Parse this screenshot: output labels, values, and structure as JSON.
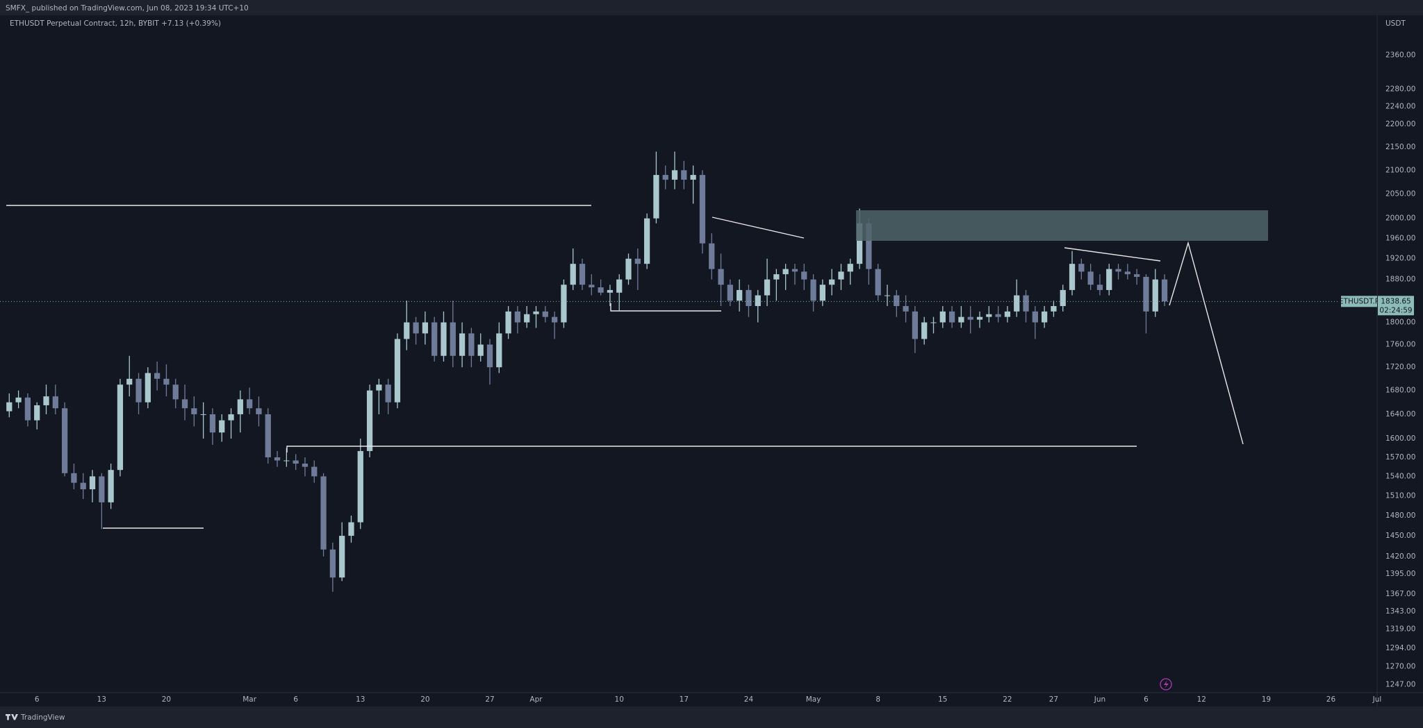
{
  "header": "SMFX_ published on TradingView.com, Jun 08, 2023 19:34 UTC+10",
  "footer_brand": "TradingView",
  "chart_data": {
    "type": "candlestick",
    "title": "ETHUSDT Perpetual Contract, 12h, BYBIT  +7.13 (+0.39%)",
    "currency": "USDT",
    "symbol_label": "ETHUSDT.P",
    "countdown": "02:24:59",
    "log_scale": true,
    "up_color": "#a9c7cd",
    "down_color": "#6f7c99",
    "x": [
      "02-03",
      "02-04",
      "02-05",
      "02-06",
      "02-07",
      "02-08",
      "02-09",
      "02-10",
      "02-11",
      "02-12",
      "02-13",
      "02-14",
      "02-15",
      "02-16",
      "02-17",
      "02-18",
      "02-19",
      "02-20",
      "02-21",
      "02-22",
      "02-23",
      "02-24",
      "02-25",
      "02-26",
      "02-27",
      "02-28",
      "03-01",
      "03-02",
      "03-03",
      "03-04",
      "03-05",
      "03-06",
      "03-07",
      "03-08",
      "03-09",
      "03-10",
      "03-11",
      "03-12",
      "03-13",
      "03-14",
      "03-15",
      "03-16",
      "03-17",
      "03-18",
      "03-19",
      "03-20",
      "03-21",
      "03-22",
      "03-23",
      "03-24",
      "03-25",
      "03-26",
      "03-27",
      "03-28",
      "03-29",
      "03-30",
      "03-31",
      "04-01",
      "04-02",
      "04-03",
      "04-04",
      "04-05",
      "04-06",
      "04-07",
      "04-08",
      "04-09",
      "04-10",
      "04-11",
      "04-12",
      "04-13",
      "04-14",
      "04-15",
      "04-16",
      "04-17",
      "04-18",
      "04-19",
      "04-20",
      "04-21",
      "04-22",
      "04-23",
      "04-24",
      "04-25",
      "04-26",
      "04-27",
      "04-28",
      "04-29",
      "04-30",
      "05-01",
      "05-02",
      "05-03",
      "05-04",
      "05-05",
      "05-06",
      "05-07",
      "05-08",
      "05-09",
      "05-10",
      "05-11",
      "05-12",
      "05-13",
      "05-14",
      "05-15",
      "05-16",
      "05-17",
      "05-18",
      "05-19",
      "05-20",
      "05-21",
      "05-22",
      "05-23",
      "05-24",
      "05-25",
      "05-26",
      "05-27",
      "05-28",
      "05-29",
      "05-30",
      "05-31",
      "06-01",
      "06-02",
      "06-03",
      "06-04",
      "06-05",
      "06-06",
      "06-07",
      "06-08"
    ],
    "open": [
      1645,
      1660,
      1668,
      1630,
      1655,
      1670,
      1650,
      1545,
      1530,
      1520,
      1540,
      1500,
      1550,
      1690,
      1700,
      1660,
      1710,
      1700,
      1690,
      1665,
      1650,
      1640,
      1640,
      1610,
      1630,
      1640,
      1665,
      1650,
      1640,
      1570,
      1565,
      1565,
      1560,
      1555,
      1540,
      1430,
      1390,
      1450,
      1470,
      1580,
      1680,
      1690,
      1660,
      1770,
      1800,
      1780,
      1800,
      1740,
      1800,
      1740,
      1780,
      1740,
      1760,
      1720,
      1780,
      1820,
      1800,
      1815,
      1820,
      1810,
      1800,
      1870,
      1910,
      1870,
      1865,
      1855,
      1855,
      1880,
      1920,
      1910,
      2000,
      2090,
      2080,
      2100,
      2080,
      2090,
      1950,
      1900,
      1870,
      1840,
      1860,
      1830,
      1850,
      1880,
      1890,
      1900,
      1895,
      1880,
      1840,
      1870,
      1880,
      1895,
      1910,
      1990,
      1900,
      1850,
      1850,
      1830,
      1820,
      1770,
      1800,
      1800,
      1820,
      1800,
      1810,
      1805,
      1810,
      1815,
      1810,
      1820,
      1850,
      1820,
      1800,
      1820,
      1830,
      1860,
      1910,
      1895,
      1870,
      1860,
      1900,
      1895,
      1890,
      1885,
      1820,
      1880
    ],
    "high": [
      1675,
      1680,
      1675,
      1660,
      1690,
      1690,
      1660,
      1560,
      1545,
      1550,
      1545,
      1560,
      1700,
      1740,
      1710,
      1720,
      1730,
      1725,
      1700,
      1690,
      1670,
      1660,
      1650,
      1640,
      1650,
      1680,
      1685,
      1670,
      1650,
      1580,
      1585,
      1575,
      1570,
      1565,
      1545,
      1440,
      1470,
      1480,
      1600,
      1690,
      1700,
      1700,
      1780,
      1840,
      1810,
      1820,
      1810,
      1820,
      1840,
      1800,
      1790,
      1780,
      1770,
      1800,
      1830,
      1830,
      1830,
      1830,
      1830,
      1820,
      1880,
      1940,
      1920,
      1890,
      1880,
      1870,
      1890,
      1930,
      1940,
      2010,
      2140,
      2110,
      2140,
      2120,
      2110,
      2100,
      1970,
      1930,
      1880,
      1880,
      1870,
      1860,
      1920,
      1900,
      1910,
      1910,
      1910,
      1890,
      1880,
      1900,
      1910,
      1920,
      2020,
      2000,
      1910,
      1870,
      1860,
      1850,
      1830,
      1810,
      1810,
      1830,
      1830,
      1830,
      1830,
      1820,
      1830,
      1830,
      1830,
      1880,
      1860,
      1830,
      1830,
      1840,
      1870,
      1935,
      1920,
      1910,
      1890,
      1910,
      1910,
      1910,
      1900,
      1890,
      1900,
      1890
    ],
    "low": [
      1635,
      1650,
      1620,
      1615,
      1640,
      1640,
      1540,
      1520,
      1505,
      1500,
      1460,
      1490,
      1540,
      1670,
      1640,
      1650,
      1680,
      1670,
      1650,
      1630,
      1620,
      1600,
      1590,
      1595,
      1600,
      1610,
      1640,
      1620,
      1560,
      1555,
      1555,
      1550,
      1540,
      1530,
      1420,
      1370,
      1385,
      1440,
      1460,
      1570,
      1640,
      1640,
      1650,
      1750,
      1760,
      1760,
      1730,
      1730,
      1720,
      1720,
      1720,
      1730,
      1690,
      1710,
      1770,
      1780,
      1790,
      1790,
      1800,
      1770,
      1790,
      1860,
      1860,
      1850,
      1850,
      1830,
      1822,
      1870,
      1860,
      1900,
      1990,
      2060,
      2060,
      2060,
      2030,
      1930,
      1880,
      1830,
      1830,
      1820,
      1810,
      1800,
      1830,
      1840,
      1860,
      1870,
      1860,
      1820,
      1830,
      1850,
      1860,
      1870,
      1900,
      1870,
      1840,
      1830,
      1810,
      1800,
      1745,
      1760,
      1780,
      1790,
      1790,
      1790,
      1780,
      1790,
      1800,
      1800,
      1800,
      1810,
      1800,
      1770,
      1790,
      1810,
      1820,
      1850,
      1880,
      1860,
      1850,
      1850,
      1880,
      1880,
      1870,
      1780,
      1810,
      1830
    ],
    "close": [
      1660,
      1668,
      1630,
      1655,
      1670,
      1650,
      1545,
      1530,
      1520,
      1540,
      1500,
      1550,
      1690,
      1700,
      1660,
      1710,
      1700,
      1690,
      1665,
      1650,
      1640,
      1640,
      1610,
      1630,
      1640,
      1665,
      1650,
      1640,
      1570,
      1565,
      1565,
      1560,
      1555,
      1540,
      1430,
      1390,
      1450,
      1470,
      1580,
      1680,
      1690,
      1660,
      1770,
      1800,
      1780,
      1800,
      1740,
      1800,
      1740,
      1780,
      1740,
      1760,
      1720,
      1780,
      1820,
      1800,
      1815,
      1820,
      1810,
      1800,
      1870,
      1910,
      1870,
      1865,
      1855,
      1860,
      1880,
      1920,
      1910,
      2000,
      2090,
      2080,
      2100,
      2080,
      2090,
      1950,
      1900,
      1870,
      1840,
      1860,
      1830,
      1850,
      1880,
      1890,
      1900,
      1895,
      1880,
      1840,
      1870,
      1880,
      1895,
      1910,
      1990,
      1900,
      1850,
      1850,
      1830,
      1820,
      1770,
      1800,
      1800,
      1820,
      1800,
      1810,
      1805,
      1810,
      1815,
      1810,
      1820,
      1850,
      1820,
      1800,
      1820,
      1830,
      1860,
      1910,
      1895,
      1870,
      1860,
      1900,
      1895,
      1890,
      1885,
      1820,
      1880,
      1838.65
    ],
    "xlim": [
      "02-02",
      "07-01"
    ],
    "xticks": [
      {
        "value": "02-06",
        "label": "6"
      },
      {
        "value": "02-13",
        "label": "13"
      },
      {
        "value": "02-20",
        "label": "20"
      },
      {
        "value": "03-01",
        "label": "Mar"
      },
      {
        "value": "03-06",
        "label": "6"
      },
      {
        "value": "03-13",
        "label": "13"
      },
      {
        "value": "03-20",
        "label": "20"
      },
      {
        "value": "03-27",
        "label": "27"
      },
      {
        "value": "04-01",
        "label": "Apr"
      },
      {
        "value": "04-10",
        "label": "10"
      },
      {
        "value": "04-17",
        "label": "17"
      },
      {
        "value": "04-24",
        "label": "24"
      },
      {
        "value": "05-01",
        "label": "May"
      },
      {
        "value": "05-08",
        "label": "8"
      },
      {
        "value": "05-15",
        "label": "15"
      },
      {
        "value": "05-22",
        "label": "22"
      },
      {
        "value": "05-27",
        "label": "27"
      },
      {
        "value": "06-01",
        "label": "Jun"
      },
      {
        "value": "06-06",
        "label": "6"
      },
      {
        "value": "06-12",
        "label": "12"
      },
      {
        "value": "06-19",
        "label": "19"
      },
      {
        "value": "06-26",
        "label": "26"
      },
      {
        "value": "07-01",
        "label": "Jul"
      }
    ],
    "ylim": [
      1237,
      2457
    ],
    "yticks": [
      {
        "value": 2360,
        "label": "2360.00"
      },
      {
        "value": 2280,
        "label": "2280.00"
      },
      {
        "value": 2240,
        "label": "2240.00"
      },
      {
        "value": 2200,
        "label": "2200.00"
      },
      {
        "value": 2150,
        "label": "2150.00"
      },
      {
        "value": 2100,
        "label": "2100.00"
      },
      {
        "value": 2050,
        "label": "2050.00"
      },
      {
        "value": 2000,
        "label": "2000.00"
      },
      {
        "value": 1960,
        "label": "1960.00"
      },
      {
        "value": 1920,
        "label": "1920.00"
      },
      {
        "value": 1880,
        "label": "1880.00"
      },
      {
        "value": 1800,
        "label": "1800.00"
      },
      {
        "value": 1760,
        "label": "1760.00"
      },
      {
        "value": 1720,
        "label": "1720.00"
      },
      {
        "value": 1680,
        "label": "1680.00"
      },
      {
        "value": 1640,
        "label": "1640.00"
      },
      {
        "value": 1600,
        "label": "1600.00"
      },
      {
        "value": 1570,
        "label": "1570.00"
      },
      {
        "value": 1540,
        "label": "1540.00"
      },
      {
        "value": 1510,
        "label": "1510.00"
      },
      {
        "value": 1480,
        "label": "1480.00"
      },
      {
        "value": 1450,
        "label": "1450.00"
      },
      {
        "value": 1420,
        "label": "1420.00"
      },
      {
        "value": 1395,
        "label": "1395.00"
      },
      {
        "value": 1367,
        "label": "1367.00"
      },
      {
        "value": 1343,
        "label": "1343.00"
      },
      {
        "value": 1319,
        "label": "1319.00"
      },
      {
        "value": 1294,
        "label": "1294.00"
      },
      {
        "value": 1270,
        "label": "1270.00"
      },
      {
        "value": 1247,
        "label": "1247.00"
      }
    ],
    "grid": false
  }
}
